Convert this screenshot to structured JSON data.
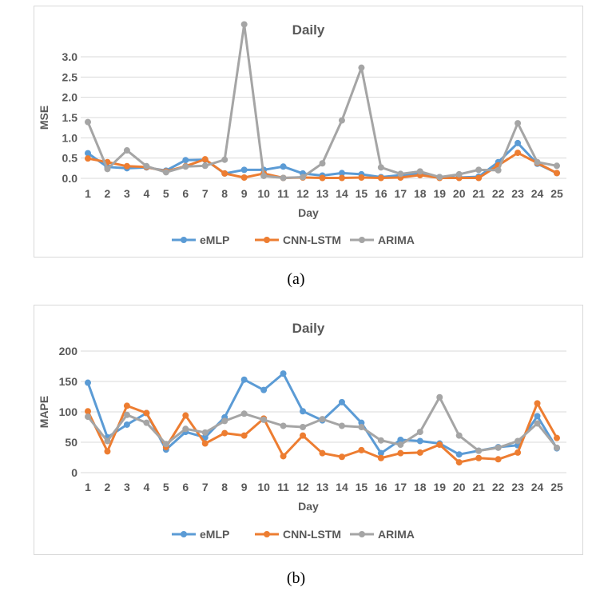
{
  "captions": {
    "a": "(a)",
    "b": "(b)"
  },
  "chart_data": [
    {
      "type": "line",
      "title": "Daily",
      "xlabel": "Day",
      "ylabel": "MSE",
      "ylim": [
        0,
        3.0
      ],
      "yticks": [
        "0.0",
        "0.5",
        "1.0",
        "1.5",
        "2.0",
        "2.5",
        "3.0"
      ],
      "ytick_values": [
        0,
        0.5,
        1.0,
        1.5,
        2.0,
        2.5,
        3.0
      ],
      "categories": [
        "1",
        "2",
        "3",
        "4",
        "5",
        "6",
        "7",
        "8",
        "9",
        "10",
        "11",
        "12",
        "13",
        "14",
        "15",
        "16",
        "17",
        "18",
        "19",
        "20",
        "21",
        "22",
        "23",
        "24",
        "25"
      ],
      "grid": true,
      "legend": "bottom",
      "series": [
        {
          "name": "eMLP",
          "color": "#5b9bd5",
          "values": [
            0.62,
            0.28,
            0.25,
            0.27,
            0.19,
            0.45,
            0.46,
            0.12,
            0.21,
            0.21,
            0.29,
            0.12,
            0.07,
            0.13,
            0.1,
            0.03,
            0.08,
            0.12,
            0.03,
            0.02,
            0.04,
            0.4,
            0.87,
            0.36,
            0.13
          ]
        },
        {
          "name": "CNN-LSTM",
          "color": "#ed7d31",
          "values": [
            0.49,
            0.4,
            0.3,
            0.28,
            0.17,
            0.3,
            0.47,
            0.12,
            0.02,
            0.12,
            0.01,
            0.02,
            0.01,
            0.01,
            0.02,
            0.01,
            0.02,
            0.08,
            0.01,
            0.01,
            0.01,
            0.32,
            0.63,
            0.38,
            0.13
          ]
        },
        {
          "name": "ARIMA",
          "color": "#a5a5a5",
          "values": [
            1.39,
            0.23,
            0.69,
            0.3,
            0.15,
            0.29,
            0.31,
            0.46,
            3.8,
            0.06,
            0.01,
            0.03,
            0.37,
            1.43,
            2.73,
            0.27,
            0.11,
            0.17,
            0.03,
            0.1,
            0.21,
            0.2,
            1.36,
            0.4,
            0.31
          ]
        }
      ]
    },
    {
      "type": "line",
      "title": "Daily",
      "xlabel": "Day",
      "ylabel": "MAPE",
      "ylim": [
        0,
        200
      ],
      "yticks": [
        "0",
        "50",
        "100",
        "150",
        "200"
      ],
      "ytick_values": [
        0,
        50,
        100,
        150,
        200
      ],
      "categories": [
        "1",
        "2",
        "3",
        "4",
        "5",
        "6",
        "7",
        "8",
        "9",
        "10",
        "11",
        "12",
        "13",
        "14",
        "15",
        "16",
        "17",
        "18",
        "19",
        "20",
        "21",
        "22",
        "23",
        "24",
        "25"
      ],
      "grid": true,
      "legend": "bottom",
      "series": [
        {
          "name": "eMLP",
          "color": "#5b9bd5",
          "values": [
            148,
            58,
            79,
            98,
            38,
            67,
            58,
            91,
            153,
            136,
            163,
            101,
            86,
            116,
            82,
            32,
            54,
            52,
            48,
            30,
            36,
            42,
            45,
            93,
            40
          ]
        },
        {
          "name": "CNN-LSTM",
          "color": "#ed7d31",
          "values": [
            101,
            35,
            110,
            98,
            42,
            94,
            48,
            65,
            61,
            89,
            27,
            61,
            32,
            26,
            37,
            24,
            32,
            33,
            46,
            17,
            24,
            22,
            33,
            114,
            57
          ]
        },
        {
          "name": "ARIMA",
          "color": "#a5a5a5",
          "values": [
            92,
            52,
            95,
            82,
            47,
            72,
            66,
            85,
            97,
            87,
            77,
            75,
            88,
            77,
            75,
            53,
            46,
            67,
            124,
            61,
            36,
            41,
            52,
            81,
            41
          ]
        }
      ]
    }
  ]
}
